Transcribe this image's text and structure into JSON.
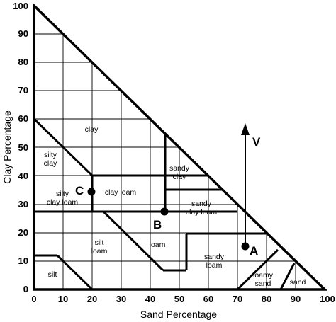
{
  "axes": {
    "x_label": "Sand Percentage",
    "y_label": "Clay Percentage",
    "x_ticks": [
      "0",
      "10",
      "20",
      "30",
      "40",
      "50",
      "60",
      "70",
      "80",
      "90",
      "100"
    ],
    "y_ticks": [
      "0",
      "10",
      "20",
      "30",
      "40",
      "50",
      "60",
      "70",
      "80",
      "90",
      "100"
    ]
  },
  "regions": {
    "clay": "clay",
    "silty_clay_1": "silty",
    "silty_clay_2": "clay",
    "sandy_clay_1": "sandy",
    "sandy_clay_2": "clay",
    "silty_clay_loam_1": "silty",
    "silty_clay_loam_2": "clay loam",
    "clay_loam": "clay loam",
    "sandy_clay_loam_1": "sandy",
    "sandy_clay_loam_2": "clay loam",
    "silt_loam_1": "silt",
    "silt_loam_2": "loam",
    "loam": "loam",
    "sandy_loam_1": "sandy",
    "sandy_loam_2": "loam",
    "silt": "silt",
    "loamy_sand_1": "loamy",
    "loamy_sand_2": "sand",
    "sand": "sand"
  },
  "points": {
    "a": "A",
    "b": "B",
    "c": "C"
  },
  "vector_label": "V"
}
